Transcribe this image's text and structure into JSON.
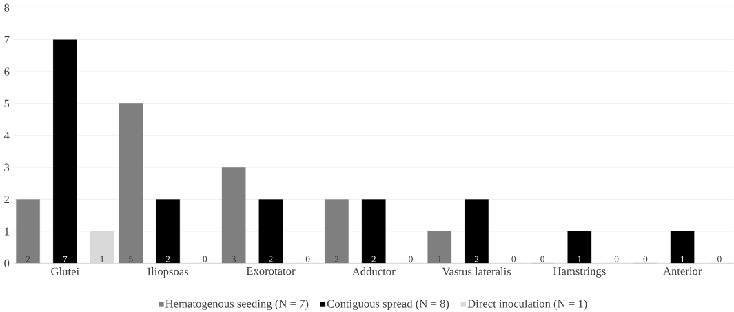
{
  "chart_data": {
    "type": "bar",
    "categories": [
      "Glutei",
      "Iliopsoas",
      "Exorotator",
      "Adductor",
      "Vastus lateralis",
      "Hamstrings",
      "Anterior"
    ],
    "series": [
      {
        "name": "Hematogenous seeding (N = 7)",
        "color": "#7f7f7f",
        "values": [
          2,
          5,
          3,
          2,
          1,
          0,
          0
        ]
      },
      {
        "name": "Contiguous spread (N = 8)",
        "color": "#000000",
        "values": [
          7,
          2,
          2,
          2,
          2,
          1,
          1
        ]
      },
      {
        "name": "Direct inoculation (N = 1)",
        "color": "#d9d9d9",
        "values": [
          1,
          0,
          0,
          0,
          0,
          0,
          0
        ]
      }
    ],
    "ylim": [
      0,
      8
    ],
    "yticks": [
      0,
      1,
      2,
      3,
      4,
      5,
      6,
      7,
      8
    ],
    "grid": "y",
    "legend": "bottom",
    "data_labels": true
  }
}
